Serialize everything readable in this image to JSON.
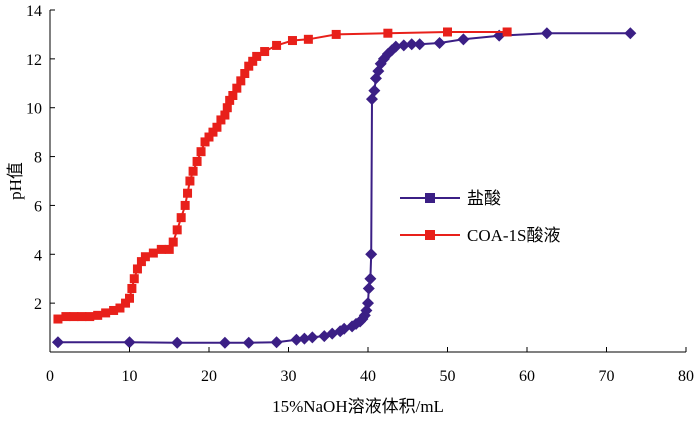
{
  "chart_data": {
    "type": "line",
    "xlabel": "15%NaOH溶液体积/mL",
    "ylabel": "pH值",
    "xlim": [
      0,
      80
    ],
    "ylim": [
      0,
      14
    ],
    "xticks": [
      0,
      10,
      20,
      30,
      40,
      50,
      60,
      70,
      80
    ],
    "yticks": [
      2,
      4,
      6,
      8,
      10,
      12,
      14
    ],
    "grid": false,
    "legend_position": "right",
    "series": [
      {
        "name": "盐酸",
        "color": "#3b1f85",
        "marker": "diamond",
        "points": [
          [
            1.0,
            0.4
          ],
          [
            10.0,
            0.4
          ],
          [
            16.0,
            0.38
          ],
          [
            22.0,
            0.38
          ],
          [
            25.0,
            0.38
          ],
          [
            28.5,
            0.4
          ],
          [
            31.0,
            0.5
          ],
          [
            32.0,
            0.55
          ],
          [
            33.0,
            0.6
          ],
          [
            34.5,
            0.65
          ],
          [
            35.5,
            0.75
          ],
          [
            36.5,
            0.85
          ],
          [
            37.0,
            0.95
          ],
          [
            38.0,
            1.05
          ],
          [
            38.5,
            1.15
          ],
          [
            39.0,
            1.25
          ],
          [
            39.3,
            1.35
          ],
          [
            39.6,
            1.5
          ],
          [
            39.8,
            1.7
          ],
          [
            40.0,
            2.0
          ],
          [
            40.1,
            2.6
          ],
          [
            40.3,
            3.0
          ],
          [
            40.4,
            4.0
          ],
          [
            40.5,
            10.35
          ],
          [
            40.8,
            10.7
          ],
          [
            41.0,
            11.2
          ],
          [
            41.3,
            11.5
          ],
          [
            41.6,
            11.8
          ],
          [
            42.0,
            12.0
          ],
          [
            42.5,
            12.2
          ],
          [
            43.0,
            12.35
          ],
          [
            43.5,
            12.5
          ],
          [
            44.5,
            12.55
          ],
          [
            45.5,
            12.6
          ],
          [
            46.5,
            12.6
          ],
          [
            49.0,
            12.65
          ],
          [
            52.0,
            12.8
          ],
          [
            56.5,
            12.95
          ],
          [
            62.5,
            13.05
          ],
          [
            73.0,
            13.05
          ]
        ]
      },
      {
        "name": "COA-1S酸液",
        "color": "#e8201a",
        "marker": "square",
        "points": [
          [
            1.0,
            1.35
          ],
          [
            2.0,
            1.45
          ],
          [
            3.0,
            1.45
          ],
          [
            4.0,
            1.45
          ],
          [
            5.0,
            1.45
          ],
          [
            6.0,
            1.5
          ],
          [
            7.0,
            1.6
          ],
          [
            8.0,
            1.7
          ],
          [
            8.8,
            1.8
          ],
          [
            9.5,
            2.0
          ],
          [
            10.0,
            2.2
          ],
          [
            10.3,
            2.6
          ],
          [
            10.6,
            3.0
          ],
          [
            11.0,
            3.4
          ],
          [
            11.5,
            3.7
          ],
          [
            12.0,
            3.9
          ],
          [
            13.0,
            4.05
          ],
          [
            14.0,
            4.2
          ],
          [
            15.0,
            4.2
          ],
          [
            15.5,
            4.5
          ],
          [
            16.0,
            5.0
          ],
          [
            16.5,
            5.5
          ],
          [
            17.0,
            6.0
          ],
          [
            17.3,
            6.5
          ],
          [
            17.6,
            7.0
          ],
          [
            18.0,
            7.4
          ],
          [
            18.5,
            7.8
          ],
          [
            19.0,
            8.2
          ],
          [
            19.5,
            8.6
          ],
          [
            20.0,
            8.8
          ],
          [
            20.5,
            9.0
          ],
          [
            21.0,
            9.2
          ],
          [
            21.5,
            9.5
          ],
          [
            22.0,
            9.7
          ],
          [
            22.3,
            10.0
          ],
          [
            22.6,
            10.3
          ],
          [
            23.0,
            10.5
          ],
          [
            23.5,
            10.8
          ],
          [
            24.0,
            11.1
          ],
          [
            24.5,
            11.4
          ],
          [
            25.0,
            11.7
          ],
          [
            25.5,
            11.9
          ],
          [
            26.0,
            12.1
          ],
          [
            27.0,
            12.3
          ],
          [
            28.5,
            12.55
          ],
          [
            30.5,
            12.75
          ],
          [
            32.5,
            12.8
          ],
          [
            36.0,
            13.0
          ],
          [
            42.5,
            13.05
          ],
          [
            50.0,
            13.1
          ],
          [
            57.5,
            13.1
          ]
        ]
      }
    ]
  }
}
